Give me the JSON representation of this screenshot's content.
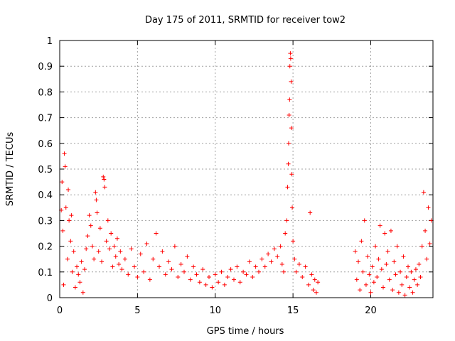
{
  "chart_data": {
    "type": "scatter",
    "title": "Day 175 of 2011, SRMTID for receiver tow2",
    "xlabel": "GPS time / hours",
    "ylabel": "SRMTID / TECUs",
    "xlim": [
      0,
      24
    ],
    "ylim": [
      0,
      1
    ],
    "xticks": [
      0,
      5,
      10,
      15,
      20
    ],
    "xtick_labels": [
      "0",
      "5",
      "10",
      "15",
      "20"
    ],
    "yticks": [
      0,
      0.1,
      0.2,
      0.3,
      0.4,
      0.5,
      0.6,
      0.7,
      0.8,
      0.9,
      1
    ],
    "ytick_labels": [
      "0",
      "0.1",
      "0.2",
      "0.3",
      "0.4",
      "0.5",
      "0.6",
      "0.7",
      "0.8",
      "0.9",
      "1"
    ],
    "grid": true,
    "marker": "+",
    "color": "#ff0000",
    "series": [
      {
        "name": "SRMTID",
        "points": [
          [
            0.1,
            0.34
          ],
          [
            0.15,
            0.45
          ],
          [
            0.2,
            0.26
          ],
          [
            0.25,
            0.05
          ],
          [
            0.3,
            0.56
          ],
          [
            0.35,
            0.51
          ],
          [
            0.4,
            0.35
          ],
          [
            0.5,
            0.15
          ],
          [
            0.55,
            0.42
          ],
          [
            0.6,
            0.3
          ],
          [
            0.7,
            0.22
          ],
          [
            0.75,
            0.32
          ],
          [
            0.8,
            0.1
          ],
          [
            0.9,
            0.18
          ],
          [
            1.0,
            0.04
          ],
          [
            1.1,
            0.12
          ],
          [
            1.2,
            0.09
          ],
          [
            1.3,
            0.06
          ],
          [
            1.4,
            0.14
          ],
          [
            1.5,
            0.02
          ],
          [
            1.6,
            0.11
          ],
          [
            1.7,
            0.19
          ],
          [
            1.8,
            0.24
          ],
          [
            1.9,
            0.32
          ],
          [
            2.0,
            0.28
          ],
          [
            2.1,
            0.2
          ],
          [
            2.2,
            0.15
          ],
          [
            2.3,
            0.41
          ],
          [
            2.35,
            0.38
          ],
          [
            2.4,
            0.33
          ],
          [
            2.5,
            0.18
          ],
          [
            2.6,
            0.27
          ],
          [
            2.7,
            0.14
          ],
          [
            2.8,
            0.47
          ],
          [
            2.85,
            0.46
          ],
          [
            2.9,
            0.43
          ],
          [
            3.0,
            0.22
          ],
          [
            3.1,
            0.3
          ],
          [
            3.2,
            0.19
          ],
          [
            3.3,
            0.25
          ],
          [
            3.4,
            0.12
          ],
          [
            3.5,
            0.2
          ],
          [
            3.6,
            0.16
          ],
          [
            3.7,
            0.23
          ],
          [
            3.8,
            0.13
          ],
          [
            3.9,
            0.18
          ],
          [
            4.0,
            0.11
          ],
          [
            4.2,
            0.15
          ],
          [
            4.4,
            0.09
          ],
          [
            4.6,
            0.19
          ],
          [
            4.8,
            0.12
          ],
          [
            5.0,
            0.08
          ],
          [
            5.2,
            0.17
          ],
          [
            5.4,
            0.1
          ],
          [
            5.6,
            0.21
          ],
          [
            5.8,
            0.07
          ],
          [
            6.0,
            0.15
          ],
          [
            6.2,
            0.25
          ],
          [
            6.4,
            0.12
          ],
          [
            6.6,
            0.18
          ],
          [
            6.8,
            0.09
          ],
          [
            7.0,
            0.14
          ],
          [
            7.2,
            0.11
          ],
          [
            7.4,
            0.2
          ],
          [
            7.6,
            0.08
          ],
          [
            7.8,
            0.13
          ],
          [
            8.0,
            0.1
          ],
          [
            8.2,
            0.16
          ],
          [
            8.4,
            0.07
          ],
          [
            8.6,
            0.12
          ],
          [
            8.8,
            0.09
          ],
          [
            9.0,
            0.06
          ],
          [
            9.2,
            0.11
          ],
          [
            9.4,
            0.05
          ],
          [
            9.6,
            0.08
          ],
          [
            9.8,
            0.04
          ],
          [
            10.0,
            0.09
          ],
          [
            10.2,
            0.06
          ],
          [
            10.4,
            0.1
          ],
          [
            10.6,
            0.05
          ],
          [
            10.8,
            0.08
          ],
          [
            11.0,
            0.11
          ],
          [
            11.2,
            0.07
          ],
          [
            11.4,
            0.12
          ],
          [
            11.6,
            0.06
          ],
          [
            11.8,
            0.1
          ],
          [
            12.0,
            0.09
          ],
          [
            12.2,
            0.14
          ],
          [
            12.4,
            0.08
          ],
          [
            12.6,
            0.12
          ],
          [
            12.8,
            0.1
          ],
          [
            13.0,
            0.15
          ],
          [
            13.2,
            0.12
          ],
          [
            13.4,
            0.17
          ],
          [
            13.6,
            0.14
          ],
          [
            13.8,
            0.19
          ],
          [
            14.0,
            0.16
          ],
          [
            14.2,
            0.2
          ],
          [
            14.3,
            0.13
          ],
          [
            14.4,
            0.1
          ],
          [
            14.5,
            0.25
          ],
          [
            14.6,
            0.3
          ],
          [
            14.65,
            0.43
          ],
          [
            14.7,
            0.52
          ],
          [
            14.72,
            0.6
          ],
          [
            14.75,
            0.71
          ],
          [
            14.78,
            0.77
          ],
          [
            14.8,
            0.9
          ],
          [
            14.83,
            0.95
          ],
          [
            14.85,
            0.93
          ],
          [
            14.88,
            0.84
          ],
          [
            14.9,
            0.66
          ],
          [
            14.92,
            0.48
          ],
          [
            14.95,
            0.35
          ],
          [
            15.0,
            0.22
          ],
          [
            15.1,
            0.15
          ],
          [
            15.2,
            0.1
          ],
          [
            15.4,
            0.13
          ],
          [
            15.6,
            0.08
          ],
          [
            15.8,
            0.12
          ],
          [
            16.0,
            0.05
          ],
          [
            16.1,
            0.33
          ],
          [
            16.2,
            0.09
          ],
          [
            16.3,
            0.03
          ],
          [
            16.4,
            0.07
          ],
          [
            16.5,
            0.02
          ],
          [
            16.6,
            0.06
          ],
          [
            19.0,
            0.18
          ],
          [
            19.1,
            0.07
          ],
          [
            19.2,
            0.14
          ],
          [
            19.3,
            0.03
          ],
          [
            19.4,
            0.22
          ],
          [
            19.5,
            0.1
          ],
          [
            19.6,
            0.3
          ],
          [
            19.7,
            0.05
          ],
          [
            19.8,
            0.16
          ],
          [
            19.9,
            0.09
          ],
          [
            20.0,
            0.02
          ],
          [
            20.1,
            0.12
          ],
          [
            20.2,
            0.06
          ],
          [
            20.3,
            0.2
          ],
          [
            20.4,
            0.08
          ],
          [
            20.5,
            0.15
          ],
          [
            20.6,
            0.28
          ],
          [
            20.7,
            0.11
          ],
          [
            20.8,
            0.04
          ],
          [
            20.9,
            0.25
          ],
          [
            21.0,
            0.13
          ],
          [
            21.1,
            0.18
          ],
          [
            21.2,
            0.07
          ],
          [
            21.3,
            0.26
          ],
          [
            21.4,
            0.03
          ],
          [
            21.5,
            0.14
          ],
          [
            21.6,
            0.09
          ],
          [
            21.7,
            0.2
          ],
          [
            21.8,
            0.02
          ],
          [
            21.9,
            0.1
          ],
          [
            22.0,
            0.05
          ],
          [
            22.1,
            0.16
          ],
          [
            22.2,
            0.01
          ],
          [
            22.3,
            0.08
          ],
          [
            22.4,
            0.12
          ],
          [
            22.5,
            0.04
          ],
          [
            22.6,
            0.1
          ],
          [
            22.7,
            0.02
          ],
          [
            22.8,
            0.07
          ],
          [
            22.9,
            0.11
          ],
          [
            23.0,
            0.05
          ],
          [
            23.1,
            0.13
          ],
          [
            23.2,
            0.08
          ],
          [
            23.3,
            0.2
          ],
          [
            23.4,
            0.41
          ],
          [
            23.5,
            0.26
          ],
          [
            23.6,
            0.15
          ],
          [
            23.7,
            0.35
          ],
          [
            23.8,
            0.21
          ],
          [
            23.9,
            0.3
          ]
        ]
      }
    ]
  }
}
